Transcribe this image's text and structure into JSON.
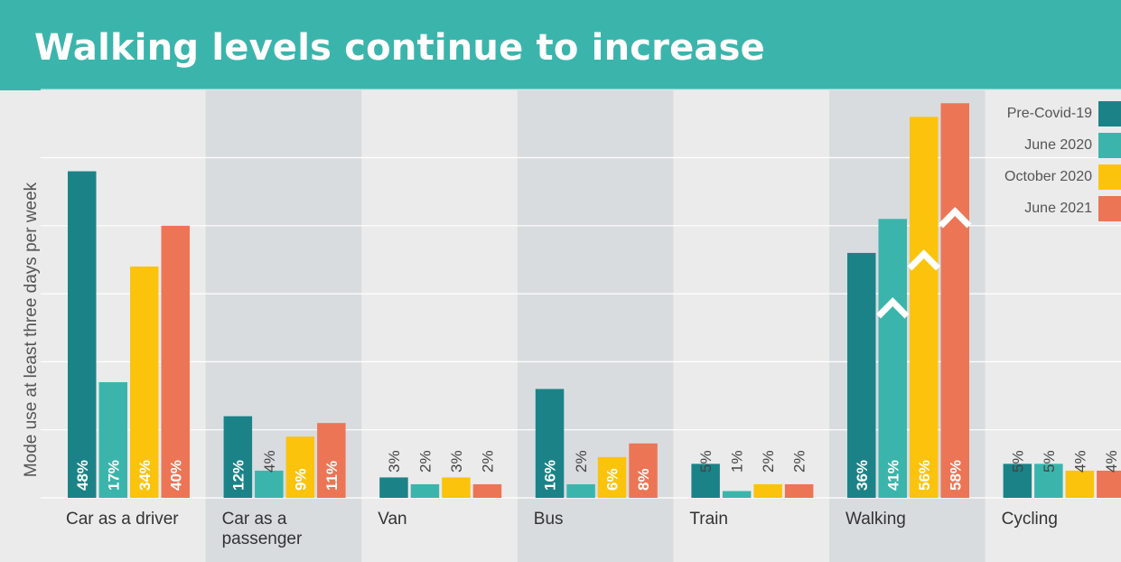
{
  "title": "Walking levels continue to increase",
  "colors": {
    "header": "#3bb5ac",
    "background": "#ebebeb",
    "band": "#d9dcdf",
    "pre_covid": "#1b8388",
    "june_2020": "#3bb5ac",
    "october_2020": "#fcc30c",
    "june_2021": "#ec7555"
  },
  "chart_data": {
    "type": "bar",
    "title": "Walking levels continue to increase",
    "xlabel": "",
    "ylabel": "Mode use at least three days per week",
    "ylim": [
      0,
      60
    ],
    "grid": true,
    "legend_position": "top-right",
    "categories": [
      "Car as a driver",
      "Car as a passenger",
      "Van",
      "Bus",
      "Train",
      "Walking",
      "Cycling"
    ],
    "series": [
      {
        "name": "Pre-Covid-19",
        "values": [
          48,
          12,
          3,
          16,
          5,
          36,
          5
        ],
        "labels": [
          "48%",
          "12%",
          "3%",
          "16%",
          "5%",
          "36%",
          "5%"
        ]
      },
      {
        "name": "June 2020",
        "values": [
          17,
          4,
          2,
          2,
          1,
          41,
          5
        ],
        "labels": [
          "17%",
          "4%",
          "2%",
          "2%",
          "1%",
          "41%",
          "5%"
        ]
      },
      {
        "name": "October 2020",
        "values": [
          34,
          9,
          3,
          6,
          2,
          56,
          4
        ],
        "labels": [
          "34%",
          "9%",
          "3%",
          "6%",
          "2%",
          "56%",
          "4%"
        ]
      },
      {
        "name": "June 2021",
        "values": [
          40,
          11,
          2,
          8,
          2,
          58,
          4
        ],
        "labels": [
          "40%",
          "11%",
          "2%",
          "8%",
          "2%",
          "58%",
          "4%"
        ]
      }
    ]
  }
}
